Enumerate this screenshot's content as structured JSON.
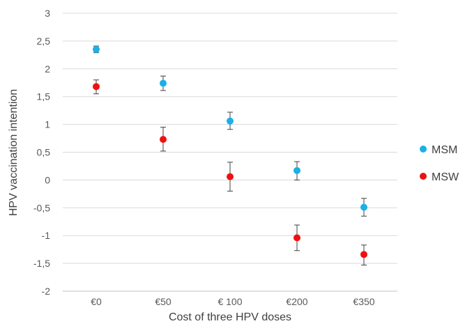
{
  "chart_data": {
    "type": "scatter",
    "title": "",
    "xlabel": "Cost of three HPV doses",
    "ylabel": "HPV vaccination intention",
    "categories": [
      "€0",
      "€50",
      "€ 100",
      "€200",
      "€350"
    ],
    "ylim": [
      -2,
      3
    ],
    "yticks": [
      "-2",
      "-1,5",
      "-1",
      "-0,5",
      "0",
      "0,5",
      "1",
      "1,5",
      "2",
      "2,5",
      "3"
    ],
    "grid": true,
    "legend_position": "right",
    "series": [
      {
        "name": "MSM",
        "color": "#1ab0e8",
        "values": [
          2.35,
          1.74,
          1.06,
          0.17,
          -0.49
        ],
        "error_low": [
          2.29,
          1.61,
          0.91,
          0.0,
          -0.65
        ],
        "error_high": [
          2.41,
          1.87,
          1.22,
          0.33,
          -0.33
        ]
      },
      {
        "name": "MSW",
        "color": "#ee1111",
        "values": [
          1.68,
          0.73,
          0.06,
          -1.04,
          -1.34
        ],
        "error_low": [
          1.55,
          0.52,
          -0.2,
          -1.27,
          -1.53
        ],
        "error_high": [
          1.8,
          0.95,
          0.32,
          -0.81,
          -1.17
        ]
      }
    ]
  }
}
